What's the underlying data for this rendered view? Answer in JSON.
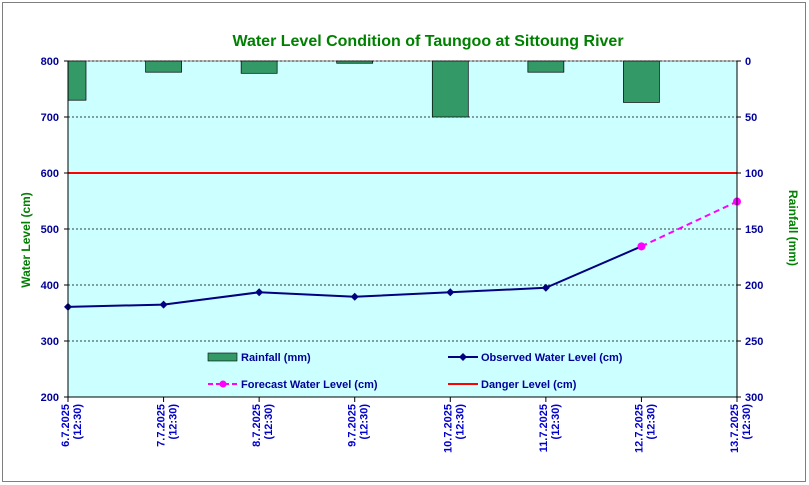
{
  "chart_data": {
    "type": "line",
    "title": "Water Level Condition of Taungoo at  Sittoung River",
    "ylabel_left": "Water Level (cm)",
    "ylabel_right": "Rainfall (mm)",
    "ylim_left": [
      200,
      800
    ],
    "ylim_right": [
      0,
      300
    ],
    "right_axis_inverted": true,
    "left_ticks": [
      800,
      700,
      600,
      500,
      400,
      300,
      200
    ],
    "right_ticks": [
      0,
      50,
      100,
      150,
      200,
      250,
      300
    ],
    "categories": [
      {
        "date": "6.7.2025",
        "time": "(12:30)"
      },
      {
        "date": "7.7.2025",
        "time": "(12:30)"
      },
      {
        "date": "8.7.2025",
        "time": "(12:30)"
      },
      {
        "date": "9.7.2025",
        "time": "(12:30)"
      },
      {
        "date": "10.7.2025",
        "time": "(12:30)"
      },
      {
        "date": "11.7.2025",
        "time": "(12:30)"
      },
      {
        "date": "12.7.2025",
        "time": "(12:30)"
      },
      {
        "date": "13.7.2025",
        "time": "(12:30)"
      }
    ],
    "rainfall": [
      35,
      10,
      11,
      2,
      50,
      10,
      37,
      null
    ],
    "observed_water_level": [
      361,
      365,
      387,
      379,
      387,
      395,
      469,
      null
    ],
    "forecast_water_level": [
      null,
      null,
      null,
      null,
      null,
      null,
      469,
      549
    ],
    "danger_level": 600,
    "grid": true,
    "legend": [
      {
        "key": "rainfall",
        "label": "Rainfall (mm)"
      },
      {
        "key": "observed",
        "label": "Observed Water Level (cm)"
      },
      {
        "key": "forecast",
        "label": "Forecast Water Level (cm)"
      },
      {
        "key": "danger",
        "label": "Danger Level (cm)"
      }
    ],
    "colors": {
      "plot_bg": "#ccffff",
      "rainfall": "#339966",
      "observed": "#000080",
      "forecast": "#ff00ff",
      "danger": "#ff0000",
      "title": "#008000",
      "ticks": "#000099"
    }
  }
}
